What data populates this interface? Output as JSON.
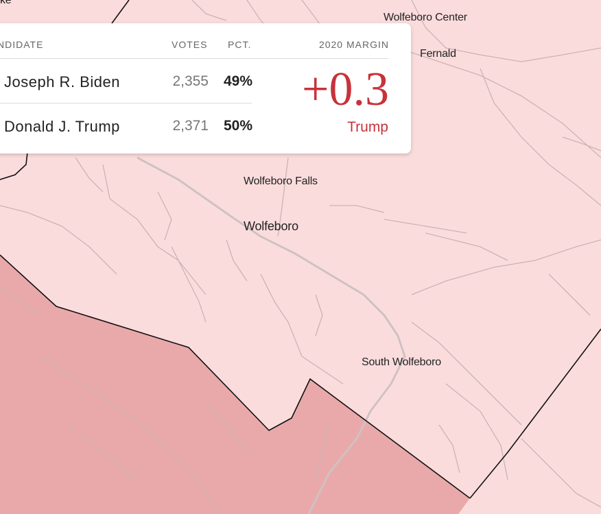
{
  "map": {
    "colors": {
      "light_region": "#fbdcdd",
      "dark_region": "#e9a9aa",
      "roads": "#c9b4b5",
      "boundary": "#111111"
    },
    "places": [
      {
        "name": "Wolfeboro Center"
      },
      {
        "name": "Fernald"
      },
      {
        "name": "Wolfeboro Falls"
      },
      {
        "name": "Wolfeboro"
      },
      {
        "name": "South Wolfeboro"
      }
    ],
    "partial_label": "ke"
  },
  "tooltip": {
    "headers": {
      "candidate": "NDIDATE",
      "votes": "VOTES",
      "pct": "PCT.",
      "margin": "2020 MARGIN"
    },
    "rows": [
      {
        "candidate": "Joseph R. Biden",
        "votes": "2,355",
        "pct": "49%"
      },
      {
        "candidate": "Donald J. Trump",
        "votes": "2,371",
        "pct": "50%"
      }
    ],
    "margin": {
      "value": "+0.3",
      "party": "Trump",
      "color": "#c8323a"
    }
  }
}
